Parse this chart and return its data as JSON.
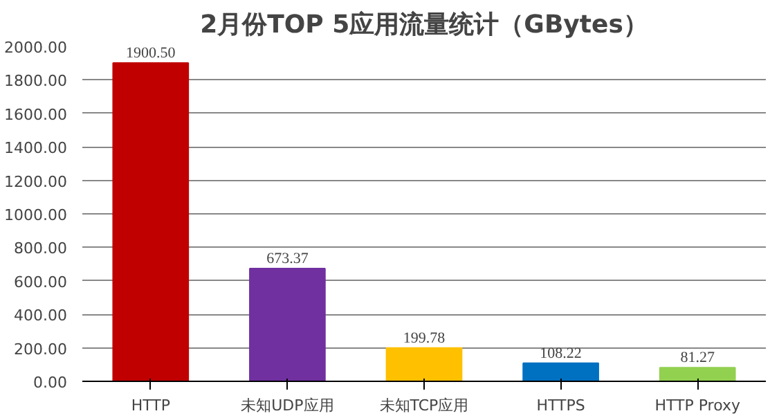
{
  "chart_data": {
    "type": "bar",
    "title": "2月份TOP 5应用流量统计（GBytes）",
    "categories": [
      "HTTP",
      "未知UDP应用",
      "未知TCP应用",
      "HTTPS",
      "HTTP Proxy"
    ],
    "values": [
      1900.5,
      673.37,
      199.78,
      108.22,
      81.27
    ],
    "value_labels": [
      "1900.50",
      "673.37",
      "199.78",
      "108.22",
      "81.27"
    ],
    "colors": [
      "#c00000",
      "#7030a0",
      "#ffc000",
      "#0070c0",
      "#92d050"
    ],
    "ylim": [
      0,
      2000
    ],
    "yticks": [
      {
        "value": 0,
        "label": "0.00"
      },
      {
        "value": 200,
        "label": "200.00"
      },
      {
        "value": 400,
        "label": "400.00"
      },
      {
        "value": 600,
        "label": "600.00"
      },
      {
        "value": 800,
        "label": "800.00"
      },
      {
        "value": 1000,
        "label": "1000.00"
      },
      {
        "value": 1200,
        "label": "1200.00"
      },
      {
        "value": 1400,
        "label": "1400.00"
      },
      {
        "value": 1600,
        "label": "1600.00"
      },
      {
        "value": 1800,
        "label": "1800.00"
      },
      {
        "value": 2000,
        "label": "2000.00"
      }
    ],
    "grid": "y"
  }
}
